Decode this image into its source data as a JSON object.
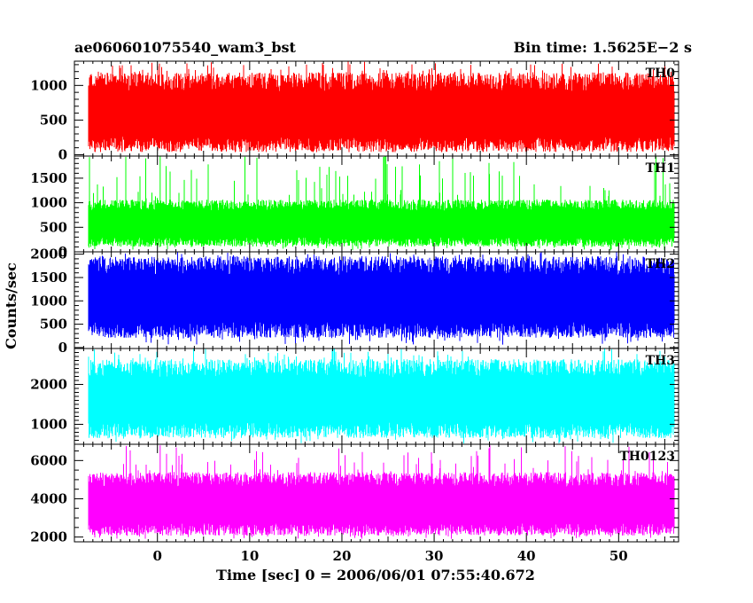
{
  "header": {
    "left": "ae060601075540_wam3_bst",
    "right": "Bin time: 1.5625E−2 s"
  },
  "chart_data": {
    "type": "line",
    "ylabel": "Counts/sec",
    "xlabel": "Time [sec] 0 = 2006/06/01 07:55:40.672",
    "xlim": [
      -9,
      56.5
    ],
    "x_ticks": [
      0,
      10,
      20,
      30,
      40,
      50
    ],
    "x_tick_labels": [
      "0",
      "10",
      "20",
      "30",
      "40",
      "50"
    ],
    "data_x_range": [
      -7.5,
      56.0
    ],
    "bin_time": 0.015625,
    "panels": [
      {
        "name": "TH0",
        "color": "#ff0000",
        "ylim": [
          -20,
          1350
        ],
        "ticks": [
          0,
          500,
          1000
        ],
        "tick_labels": [
          "0",
          "500",
          "1000"
        ],
        "series": {
          "baseline_low": 150,
          "baseline_high": 1050,
          "peak_max": 1350,
          "dip_min": 60
        }
      },
      {
        "name": "TH1",
        "color": "#00ff00",
        "ylim": [
          0,
          1950
        ],
        "ticks": [
          0,
          500,
          1000,
          1500
        ],
        "tick_labels": [
          "0",
          "500",
          "1000",
          "1500"
        ],
        "series": {
          "baseline_low": 200,
          "baseline_high": 950,
          "peak_max": 1950,
          "dip_min": 30,
          "spike_x": 0.3,
          "spike_y": 1950
        }
      },
      {
        "name": "TH2",
        "color": "#0000ff",
        "ylim": [
          -20,
          2050
        ],
        "ticks": [
          0,
          500,
          1000,
          1500,
          2000
        ],
        "tick_labels": [
          "0",
          "500",
          "1000",
          "1500",
          "2000"
        ],
        "series": {
          "baseline_low": 380,
          "baseline_high": 1750,
          "peak_max": 2050,
          "dip_min": 60
        }
      },
      {
        "name": "TH3",
        "color": "#00ffff",
        "ylim": [
          500,
          2900
        ],
        "ticks": [
          1000,
          2000
        ],
        "tick_labels": [
          "1000",
          "2000"
        ],
        "series": {
          "baseline_low": 850,
          "baseline_high": 2400,
          "peak_max": 2900,
          "dip_min": 520
        }
      },
      {
        "name": "TH0123",
        "color": "#ff00ff",
        "ylim": [
          1750,
          6850
        ],
        "ticks": [
          2000,
          4000,
          6000
        ],
        "tick_labels": [
          "2000",
          "4000",
          "6000"
        ],
        "series": {
          "baseline_low": 2400,
          "baseline_high": 5000,
          "peak_max": 6800,
          "dip_min": 1900,
          "spike_x": 0.3,
          "spike_y": 6800
        }
      }
    ]
  }
}
